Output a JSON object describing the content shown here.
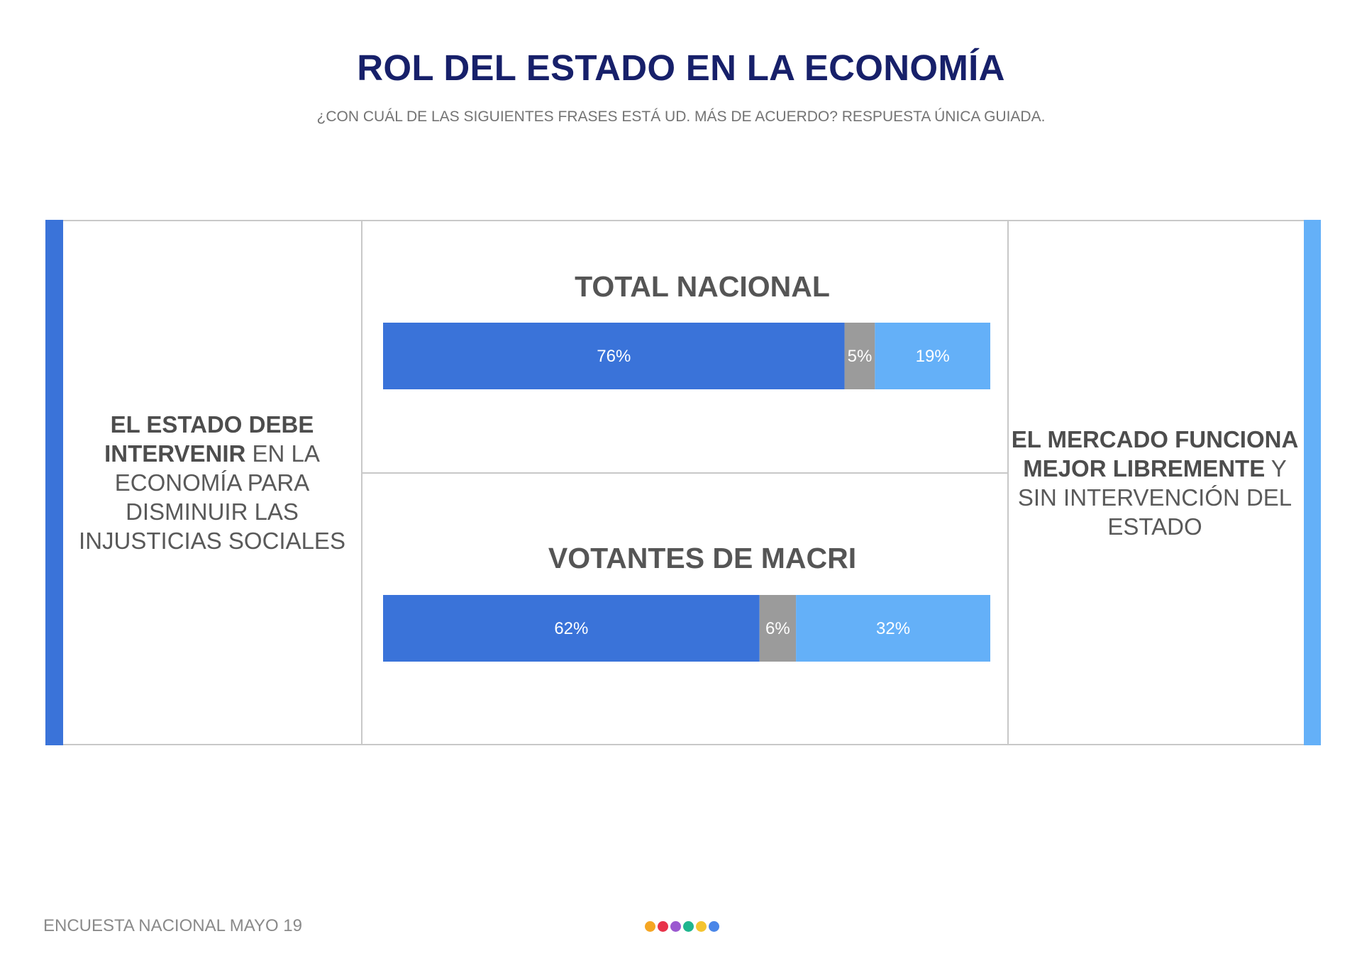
{
  "title": "ROL DEL ESTADO EN LA ECONOMÍA",
  "subtitle": "¿CON CUÁL DE LAS SIGUIENTES FRASES ESTÁ UD. MÁS DE ACUERDO? RESPUESTA ÚNICA GUIADA.",
  "left_statement": {
    "bold": "EL ESTADO DEBE INTERVENIR",
    "rest": " EN LA ECONOMÍA PARA DISMINUIR LAS INJUSTICIAS SOCIALES"
  },
  "right_statement": {
    "bold": "EL MERCADO FUNCIONA MEJOR LIBREMENTE",
    "rest": " Y SIN INTERVENCIÓN DEL  ESTADO"
  },
  "footer": "ENCUESTA NACIONAL MAYO 19",
  "colors": {
    "intervene": "#3a73d9",
    "neutral": "#9b9b9b",
    "free_market": "#64b0f8"
  },
  "dots": [
    "#f5a623",
    "#e8334a",
    "#9b59d0",
    "#1fb58f",
    "#f4c430",
    "#4a86e8"
  ],
  "chart_data": {
    "type": "bar",
    "orientation": "horizontal",
    "stacked": true,
    "normalized": true,
    "categories": [
      "TOTAL NACIONAL",
      "VOTANTES DE MACRI"
    ],
    "series": [
      {
        "values": [
          76,
          62
        ],
        "labels": [
          "76%",
          "62%"
        ]
      },
      {
        "values": [
          5,
          6
        ],
        "labels": [
          "5%",
          "6%"
        ]
      },
      {
        "values": [
          19,
          32
        ],
        "labels": [
          "19%",
          "32%"
        ]
      }
    ],
    "unit": "%",
    "grid": false
  }
}
